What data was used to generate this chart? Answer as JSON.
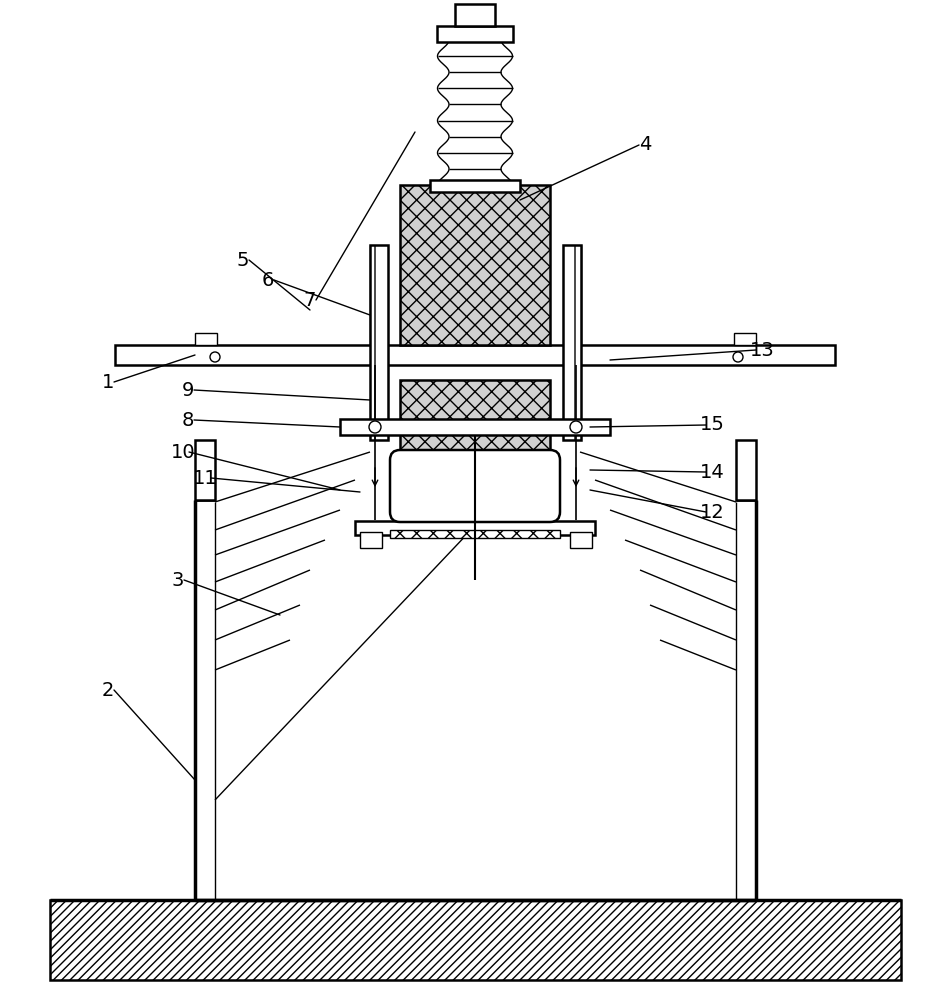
{
  "bg_color": "#ffffff",
  "line_color": "#000000",
  "figsize": [
    9.51,
    10.0
  ],
  "dpi": 100,
  "lw_main": 1.8,
  "lw_thin": 1.0,
  "lw_thick": 2.5,
  "label_fontsize": 14
}
